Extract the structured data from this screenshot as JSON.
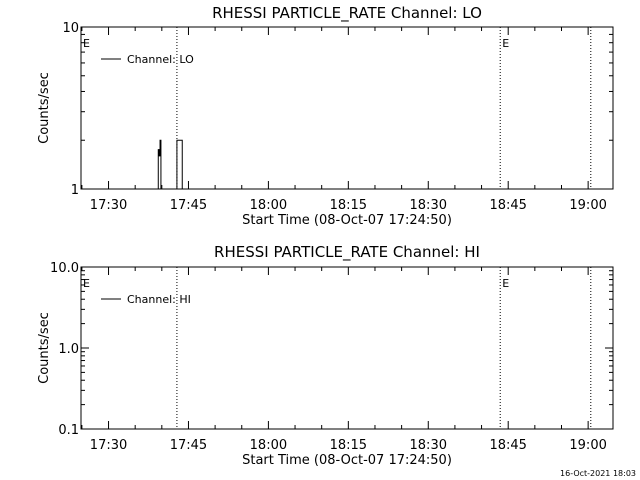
{
  "footer": {
    "timestamp": "16-Oct-2021 18:03"
  },
  "chart_data": [
    {
      "type": "line",
      "title": "RHESSI PARTICLE_RATE Channel: LO",
      "xlabel": "Start Time (08-Oct-07 17:24:50)",
      "ylabel": "Counts/sec",
      "yscale": "log",
      "ylim": [
        1,
        10
      ],
      "xlim": [
        "17:24:50",
        "19:04:40"
      ],
      "xticks": [
        "17:30",
        "17:45",
        "18:00",
        "18:15",
        "18:30",
        "18:45",
        "19:00"
      ],
      "yticks": [
        "1",
        "10"
      ],
      "legend": {
        "position": "top-left",
        "entries": [
          "Channel: LO"
        ]
      },
      "grid": false,
      "vlines": [
        {
          "time": "17:42:50",
          "style": "dotted",
          "label": ""
        },
        {
          "time": "18:43:30",
          "style": "dotted",
          "label": "E"
        },
        {
          "time": "19:00:30",
          "style": "dotted",
          "label": ""
        }
      ],
      "start_flag": "E",
      "series": [
        {
          "name": "Channel: LO",
          "x": [
            "17:39:10",
            "17:39:20",
            "17:39:30",
            "17:39:40",
            "17:39:50",
            "17:42:40",
            "17:42:50",
            "17:43:10",
            "17:43:30",
            "17:43:50"
          ],
          "y": [
            1,
            1.75,
            1.6,
            2,
            1,
            1,
            2,
            2,
            2,
            1
          ]
        }
      ]
    },
    {
      "type": "line",
      "title": "RHESSI PARTICLE_RATE Channel: HI",
      "xlabel": "Start Time (08-Oct-07 17:24:50)",
      "ylabel": "Counts/sec",
      "yscale": "log",
      "ylim": [
        0.1,
        10
      ],
      "xlim": [
        "17:24:50",
        "19:04:40"
      ],
      "xticks": [
        "17:30",
        "17:45",
        "18:00",
        "18:15",
        "18:30",
        "18:45",
        "19:00"
      ],
      "yticks": [
        "0.1",
        "1.0",
        "10.0"
      ],
      "legend": {
        "position": "top-left",
        "entries": [
          "Channel: HI"
        ]
      },
      "grid": false,
      "vlines": [
        {
          "time": "17:42:50",
          "style": "dotted",
          "label": ""
        },
        {
          "time": "18:43:30",
          "style": "dotted",
          "label": "E"
        },
        {
          "time": "19:00:30",
          "style": "dotted",
          "label": ""
        }
      ],
      "start_flag": "E",
      "series": [
        {
          "name": "Channel: HI",
          "x": [],
          "y": []
        }
      ]
    }
  ]
}
